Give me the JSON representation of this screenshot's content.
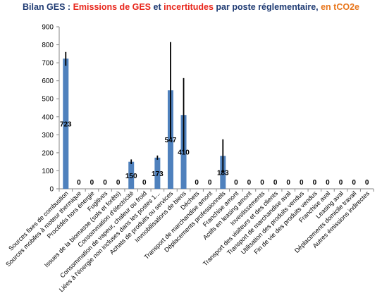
{
  "title": {
    "part1": "Bilan GES : ",
    "part2": "Emissions de GES",
    "part3": " et ",
    "part4": "incertitudes",
    "part5": " par poste réglementaire, ",
    "part6": "en tCO2e"
  },
  "colors": {
    "title_blue": "#1f3b73",
    "title_red": "#e8271c",
    "title_orange": "#e8761c",
    "bar": "#4f81bd",
    "error_bar": "#000000",
    "axis": "#868686",
    "gridline": "#d9d9d9"
  },
  "chart_data": {
    "type": "bar",
    "title": "Bilan GES : Emissions de GES et incertitudes par poste réglementaire, en tCO2e",
    "ylim": [
      0,
      900
    ],
    "yticks": [
      0,
      100,
      200,
      300,
      400,
      500,
      600,
      700,
      800,
      900
    ],
    "grid": false,
    "legend": "none",
    "categories": [
      "Sources fixes de combustion",
      "Sources mobiles à moteur thermique",
      "Procédés hors énergie",
      "Fugitives",
      "Issues de la biomasse (sols et forêts)",
      "Consommation d'électricité",
      "Consommation de vapeur, chaleur ou froid",
      "Liées à l'énergie non incluses dans les postes 1...",
      "Achats de produits ou services",
      "Immobilisations de biens",
      "Déchets",
      "Transport de marchandise amont",
      "Déplacements professionnels",
      "Franchise amont",
      "Actifs en leasing amont",
      "Investissements",
      "Transport des visiteurs et des clients",
      "Transport de marchandise aval",
      "Utilisation des produits vendus",
      "Fin de vie des produits vendus",
      "Franchise aval",
      "Leasing aval",
      "Déplacements domicile travail",
      "Autres émissions indirectes"
    ],
    "values": [
      723,
      0,
      0,
      0,
      0,
      150,
      0,
      173,
      547,
      410,
      0,
      0,
      183,
      0,
      0,
      0,
      0,
      0,
      0,
      0,
      0,
      0,
      0,
      0
    ],
    "error_high": [
      760,
      0,
      0,
      0,
      0,
      163,
      0,
      185,
      815,
      615,
      0,
      0,
      275,
      0,
      0,
      0,
      0,
      0,
      0,
      0,
      0,
      0,
      0,
      0
    ],
    "error_low": [
      683,
      0,
      0,
      0,
      0,
      137,
      0,
      161,
      279,
      205,
      0,
      0,
      91,
      0,
      0,
      0,
      0,
      0,
      0,
      0,
      0,
      0,
      0,
      0
    ],
    "data_labels": [
      "723",
      "0",
      "0",
      "0",
      "0",
      "150",
      "0",
      "173",
      "547",
      "410",
      "0",
      "0",
      "183",
      "0",
      "0",
      "0",
      "0",
      "0",
      "0",
      "0",
      "0",
      "0",
      "0",
      "0"
    ]
  }
}
